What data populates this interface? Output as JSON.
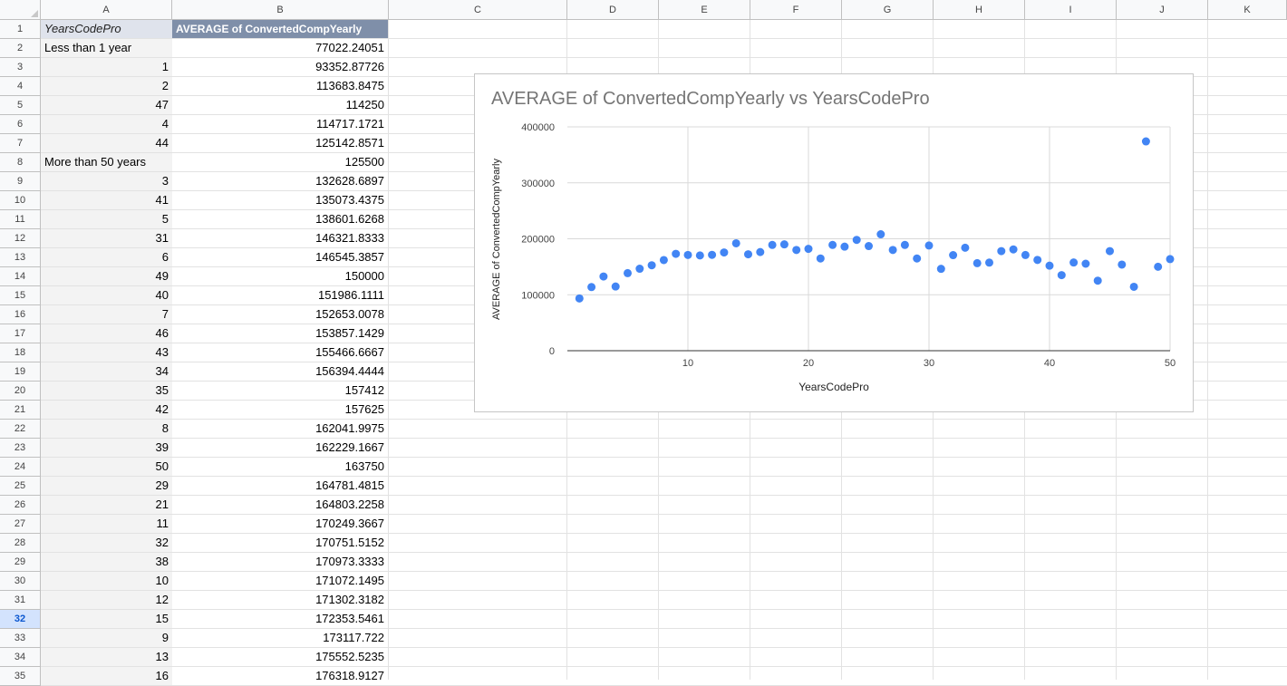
{
  "columns": [
    "A",
    "B",
    "C",
    "D",
    "E",
    "F",
    "G",
    "H",
    "I",
    "J",
    "K"
  ],
  "selected_row": 32,
  "table": {
    "header": {
      "col_a": "YearsCodePro",
      "col_b": "AVERAGE of ConvertedCompYearly"
    },
    "rows": [
      {
        "a": "Less than 1 year",
        "b": "77022.24051"
      },
      {
        "a": "1",
        "b": "93352.87726"
      },
      {
        "a": "2",
        "b": "113683.8475"
      },
      {
        "a": "47",
        "b": "114250"
      },
      {
        "a": "4",
        "b": "114717.1721"
      },
      {
        "a": "44",
        "b": "125142.8571"
      },
      {
        "a": "More than 50 years",
        "b": "125500"
      },
      {
        "a": "3",
        "b": "132628.6897"
      },
      {
        "a": "41",
        "b": "135073.4375"
      },
      {
        "a": "5",
        "b": "138601.6268"
      },
      {
        "a": "31",
        "b": "146321.8333"
      },
      {
        "a": "6",
        "b": "146545.3857"
      },
      {
        "a": "49",
        "b": "150000"
      },
      {
        "a": "40",
        "b": "151986.1111"
      },
      {
        "a": "7",
        "b": "152653.0078"
      },
      {
        "a": "46",
        "b": "153857.1429"
      },
      {
        "a": "43",
        "b": "155466.6667"
      },
      {
        "a": "34",
        "b": "156394.4444"
      },
      {
        "a": "35",
        "b": "157412"
      },
      {
        "a": "42",
        "b": "157625"
      },
      {
        "a": "8",
        "b": "162041.9975"
      },
      {
        "a": "39",
        "b": "162229.1667"
      },
      {
        "a": "50",
        "b": "163750"
      },
      {
        "a": "29",
        "b": "164781.4815"
      },
      {
        "a": "21",
        "b": "164803.2258"
      },
      {
        "a": "11",
        "b": "170249.3667"
      },
      {
        "a": "32",
        "b": "170751.5152"
      },
      {
        "a": "38",
        "b": "170973.3333"
      },
      {
        "a": "10",
        "b": "171072.1495"
      },
      {
        "a": "12",
        "b": "171302.3182"
      },
      {
        "a": "15",
        "b": "172353.5461"
      },
      {
        "a": "9",
        "b": "173117.722"
      },
      {
        "a": "13",
        "b": "175552.5235"
      },
      {
        "a": "16",
        "b": "176318.9127"
      }
    ]
  },
  "chart": {
    "title": "AVERAGE of ConvertedCompYearly vs YearsCodePro",
    "colors": {
      "point": "#4285f4",
      "grid": "#d9d9d9",
      "tick": "#444444"
    }
  },
  "chart_data": {
    "type": "scatter",
    "title": "AVERAGE of ConvertedCompYearly vs YearsCodePro",
    "xlabel": "YearsCodePro",
    "ylabel": "AVERAGE of ConvertedCompYearly",
    "xlim": [
      0,
      50
    ],
    "ylim": [
      0,
      400000
    ],
    "xticks": [
      10,
      20,
      30,
      40,
      50
    ],
    "yticks": [
      0,
      100000,
      200000,
      300000,
      400000
    ],
    "grid": true,
    "legend": "none",
    "points": [
      [
        1,
        93353
      ],
      [
        2,
        113684
      ],
      [
        3,
        132629
      ],
      [
        4,
        114717
      ],
      [
        5,
        138602
      ],
      [
        6,
        146545
      ],
      [
        7,
        152653
      ],
      [
        8,
        162042
      ],
      [
        9,
        173118
      ],
      [
        10,
        171072
      ],
      [
        11,
        170249
      ],
      [
        12,
        171302
      ],
      [
        13,
        175553
      ],
      [
        14,
        192000
      ],
      [
        15,
        172354
      ],
      [
        16,
        176319
      ],
      [
        17,
        189000
      ],
      [
        18,
        190000
      ],
      [
        19,
        180000
      ],
      [
        20,
        182000
      ],
      [
        21,
        164803
      ],
      [
        22,
        189000
      ],
      [
        23,
        186000
      ],
      [
        24,
        198000
      ],
      [
        25,
        187000
      ],
      [
        26,
        208000
      ],
      [
        27,
        180000
      ],
      [
        28,
        189000
      ],
      [
        29,
        164781
      ],
      [
        30,
        188000
      ],
      [
        31,
        146322
      ],
      [
        32,
        170752
      ],
      [
        33,
        184000
      ],
      [
        34,
        156394
      ],
      [
        35,
        157412
      ],
      [
        36,
        178000
      ],
      [
        37,
        181000
      ],
      [
        38,
        170973
      ],
      [
        39,
        162229
      ],
      [
        40,
        151986
      ],
      [
        41,
        135073
      ],
      [
        42,
        157625
      ],
      [
        43,
        155467
      ],
      [
        44,
        125143
      ],
      [
        45,
        178000
      ],
      [
        46,
        153857
      ],
      [
        47,
        114250
      ],
      [
        48,
        374000
      ],
      [
        49,
        150000
      ],
      [
        50,
        163750
      ]
    ]
  }
}
